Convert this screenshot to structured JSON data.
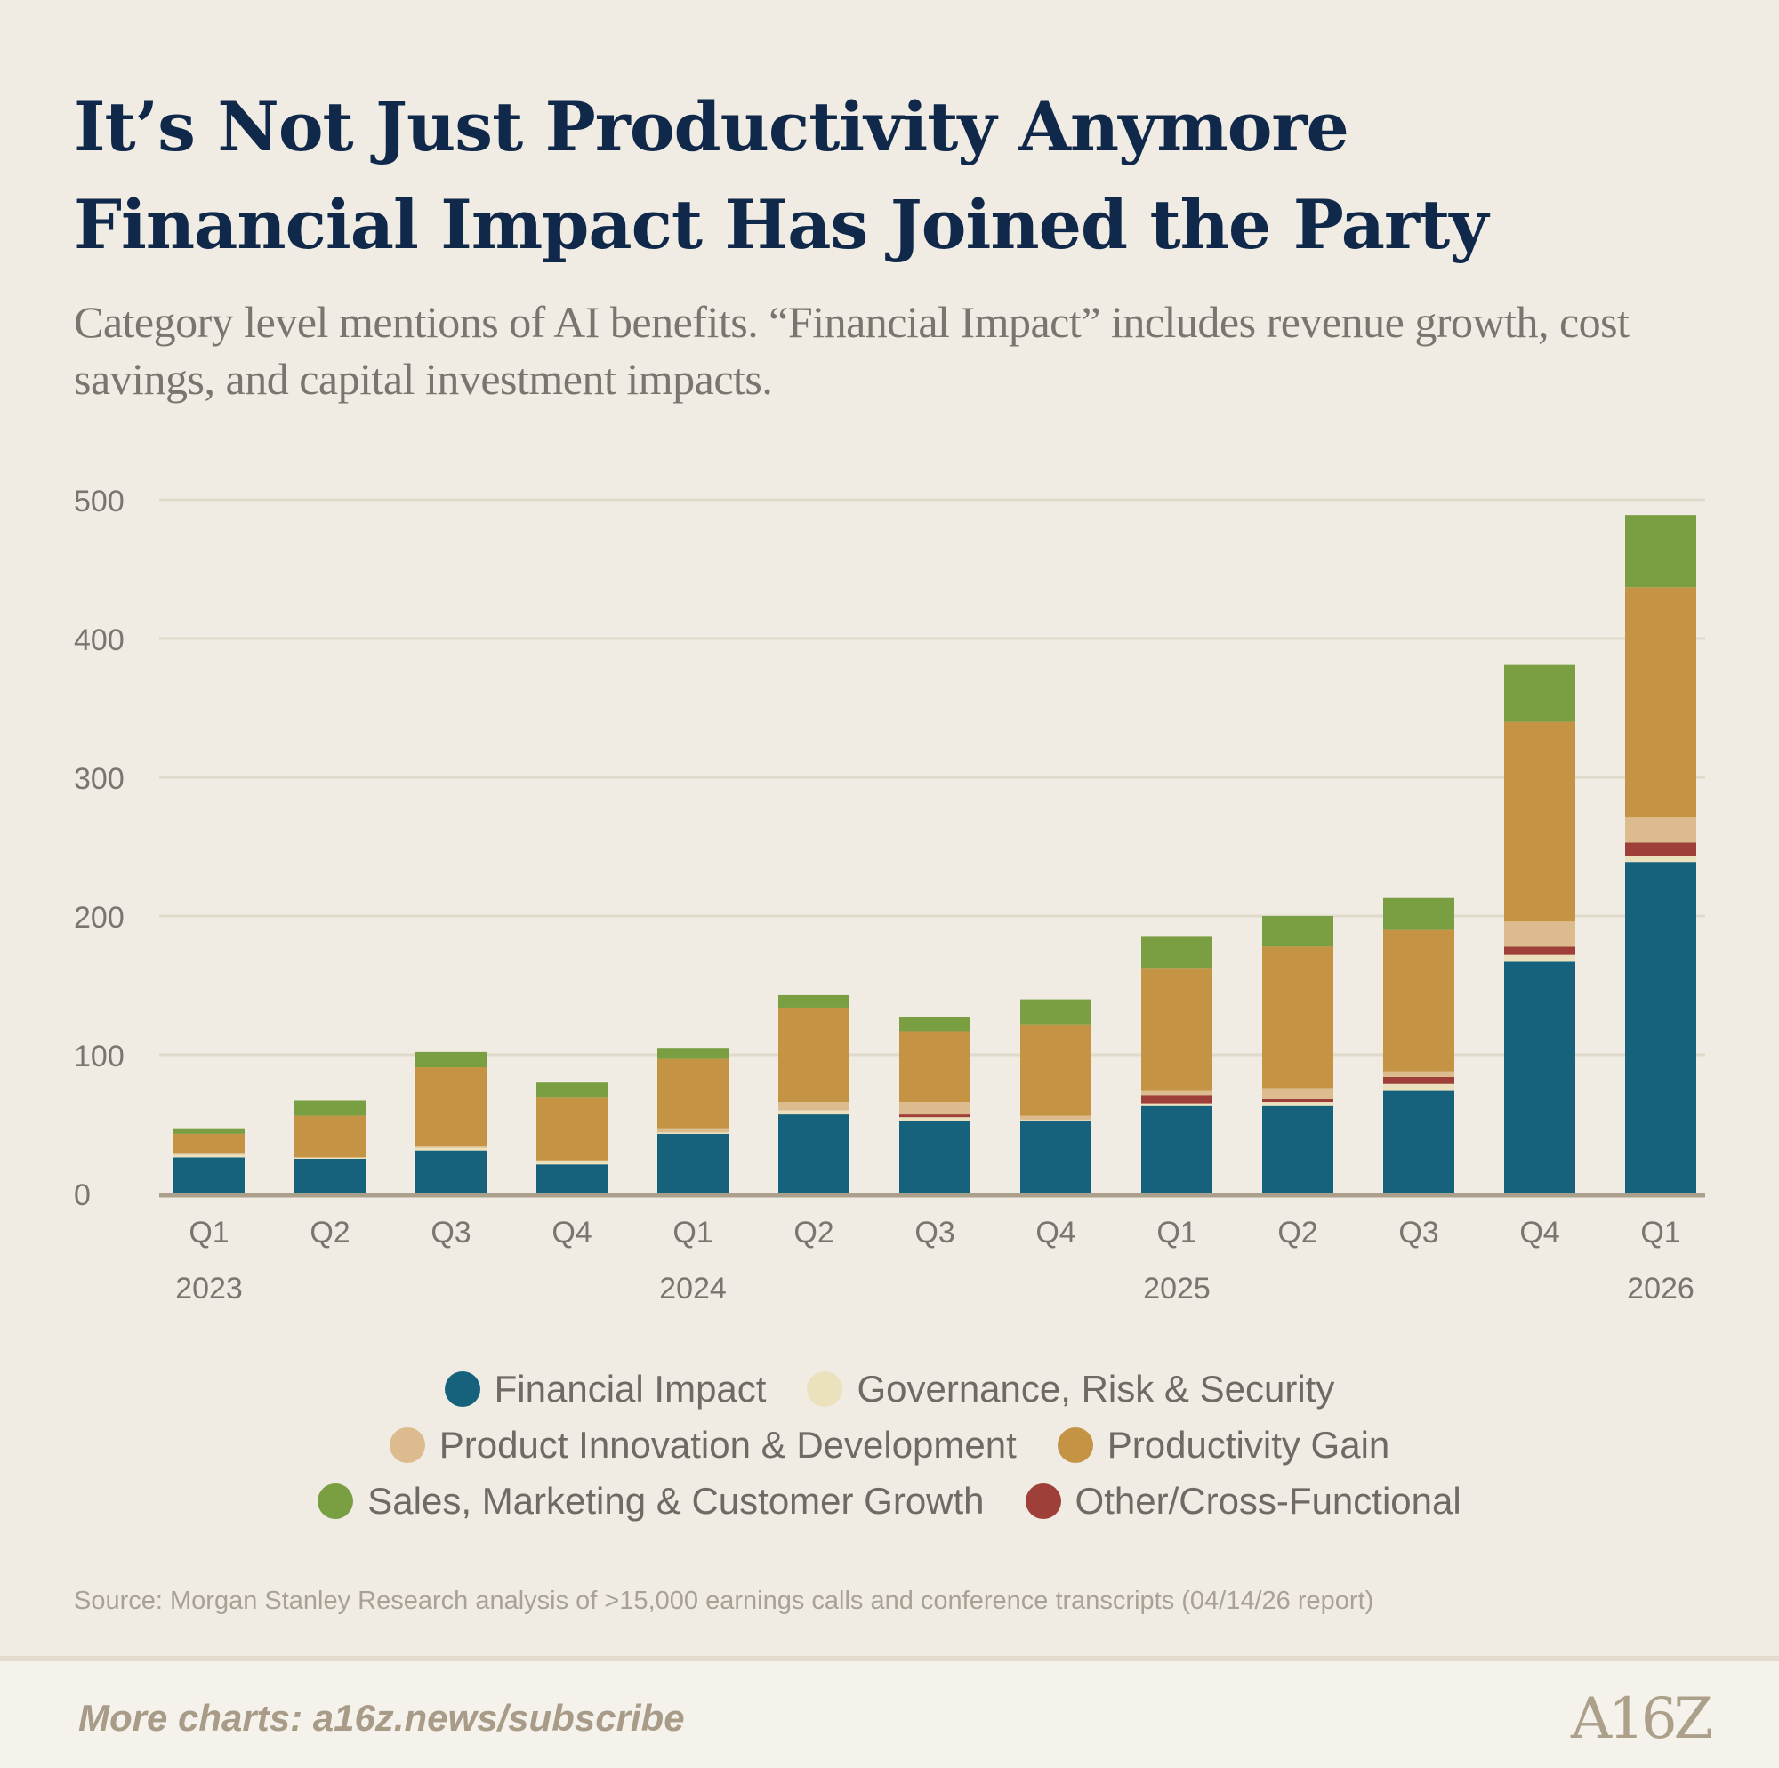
{
  "header": {
    "title_line1": "It’s Not Just Productivity Anymore",
    "title_line2": "Financial Impact Has Joined the Party",
    "subtitle": "Category level mentions of AI benefits. “Financial Impact” includes revenue growth, cost savings, and capital investment impacts."
  },
  "chart_data": {
    "type": "bar",
    "stacked": true,
    "title": "It’s Not Just Productivity Anymore / Financial Impact Has Joined the Party",
    "xlabel": "",
    "ylabel": "",
    "ylim": [
      0,
      500
    ],
    "yticks": [
      0,
      100,
      200,
      300,
      400,
      500
    ],
    "grid": true,
    "legend_placement": "bottom",
    "categories": [
      "Q1",
      "Q2",
      "Q3",
      "Q4",
      "Q1",
      "Q2",
      "Q3",
      "Q4",
      "Q1",
      "Q2",
      "Q3",
      "Q4",
      "Q1"
    ],
    "year_labels": [
      {
        "index": 0,
        "label": "2023"
      },
      {
        "index": 4,
        "label": "2024"
      },
      {
        "index": 8,
        "label": "2025"
      },
      {
        "index": 12,
        "label": "2026"
      }
    ],
    "series": [
      {
        "name": "Financial Impact",
        "color": "#16627c",
        "values": [
          26,
          25,
          31,
          21,
          43,
          57,
          52,
          52,
          63,
          63,
          74,
          167,
          239
        ]
      },
      {
        "name": "Governance, Risk & Security",
        "color": "#ece1bd",
        "values": [
          2,
          1,
          2,
          2,
          1,
          3,
          3,
          1,
          2,
          3,
          5,
          5,
          4
        ]
      },
      {
        "name": "Other/Cross-Functional",
        "color": "#9e4039",
        "values": [
          0,
          0,
          0,
          0,
          0,
          0,
          2,
          0,
          6,
          2,
          5,
          6,
          10
        ]
      },
      {
        "name": "Product Innovation & Development",
        "color": "#dcbc8e",
        "values": [
          1,
          0,
          1,
          1,
          3,
          6,
          9,
          3,
          3,
          8,
          4,
          18,
          18
        ]
      },
      {
        "name": "Productivity Gain",
        "color": "#c59344",
        "values": [
          14,
          30,
          57,
          45,
          50,
          68,
          51,
          66,
          88,
          102,
          102,
          144,
          166
        ]
      },
      {
        "name": "Sales, Marketing & Customer Growth",
        "color": "#7a9e42",
        "values": [
          4,
          11,
          11,
          11,
          8,
          9,
          10,
          18,
          23,
          22,
          23,
          41,
          52
        ]
      }
    ]
  },
  "legend": {
    "rows": [
      [
        {
          "label": "Financial Impact",
          "color": "#16627c"
        },
        {
          "label": "Governance, Risk & Security",
          "color": "#ece1bd"
        }
      ],
      [
        {
          "label": "Product Innovation & Development",
          "color": "#dcbc8e"
        },
        {
          "label": "Productivity Gain",
          "color": "#c59344"
        }
      ],
      [
        {
          "label": "Sales, Marketing & Customer Growth",
          "color": "#7a9e42"
        },
        {
          "label": "Other/Cross-Functional",
          "color": "#9e4039"
        }
      ]
    ]
  },
  "source": "Source: Morgan Stanley Research analysis of >15,000 earnings calls and conference transcripts (04/14/26 report)",
  "footer": {
    "link": "More charts: a16z.news/subscribe",
    "logo": "A16Z"
  }
}
